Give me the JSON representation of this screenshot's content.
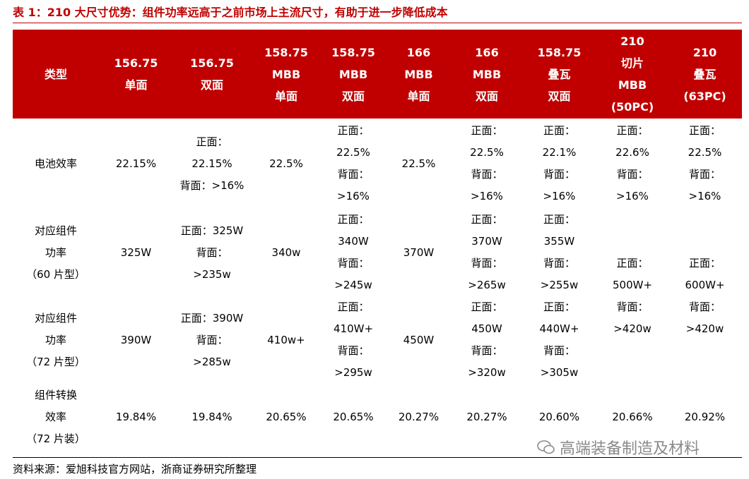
{
  "title": "表 1：210 大尺寸优势：组件功率远高于之前市场上主流尺寸，有助于进一步降低成本",
  "table": {
    "header": [
      [
        "类型"
      ],
      [
        "156.75",
        "单面"
      ],
      [
        "156.75",
        "双面"
      ],
      [
        "158.75",
        "MBB",
        "单面"
      ],
      [
        "158.75",
        "MBB",
        "双面"
      ],
      [
        "166",
        "MBB",
        "单面"
      ],
      [
        "166",
        "MBB",
        "双面"
      ],
      [
        "158.75",
        "叠瓦",
        "双面"
      ],
      [
        "210",
        "切片",
        "MBB",
        "(50PC)"
      ],
      [
        "210",
        "叠瓦",
        "(63PC)"
      ]
    ],
    "rows": [
      [
        [
          "电池效率"
        ],
        [
          "22.15%"
        ],
        [
          "正面：",
          "22.15%",
          "背面：>16%"
        ],
        [
          "22.5%"
        ],
        [
          "正面：",
          "22.5%",
          "背面：",
          ">16%"
        ],
        [
          "22.5%"
        ],
        [
          "正面：",
          "22.5%",
          "背面：",
          ">16%"
        ],
        [
          "正面：",
          "22.1%",
          "背面：",
          ">16%"
        ],
        [
          "正面：",
          "22.6%",
          "背面：",
          ">16%"
        ],
        [
          "正面：",
          "22.5%",
          "背面：",
          ">16%"
        ]
      ],
      [
        [
          "对应组件",
          "功率",
          "（60 片型）"
        ],
        [
          "325W"
        ],
        [
          "正面：325W",
          "背面：",
          ">235w"
        ],
        [
          "340w"
        ],
        [
          "正面：",
          "340W",
          "背面：",
          ">245w"
        ],
        [
          "370W"
        ],
        [
          "正面：",
          "370W",
          "背面：",
          ">265w"
        ],
        [
          "正面：",
          "355W",
          "背面：",
          ">255w"
        ],
        [
          "正面：",
          "500W+",
          "背面：",
          ">420w"
        ],
        [
          "正面：",
          "600W+",
          "背面：",
          ">420w"
        ]
      ],
      [
        [
          "对应组件",
          "功率",
          "（72 片型）"
        ],
        [
          "390W"
        ],
        [
          "正面：390W",
          "背面：",
          ">285w"
        ],
        [
          "410w+"
        ],
        [
          "正面：",
          "410W+",
          "背面：",
          ">295w"
        ],
        [
          "450W"
        ],
        [
          "正面：",
          "450W",
          "背面：",
          ">320w"
        ],
        [
          "正面：",
          "440W+",
          "背面：",
          ">305w"
        ]
      ],
      [
        [
          "组件转换",
          "效率",
          "（72 片装）"
        ],
        [
          "19.84%"
        ],
        [
          "19.84%"
        ],
        [
          "20.65%"
        ],
        [
          "20.65%"
        ],
        [
          "20.27%"
        ],
        [
          "20.27%"
        ],
        [
          "20.60%"
        ],
        [
          "20.66%"
        ],
        [
          "20.92%"
        ]
      ]
    ]
  },
  "source": "资料来源：爱旭科技官方网站，浙商证券研究所整理",
  "watermark": "高端装备制造及材料"
}
